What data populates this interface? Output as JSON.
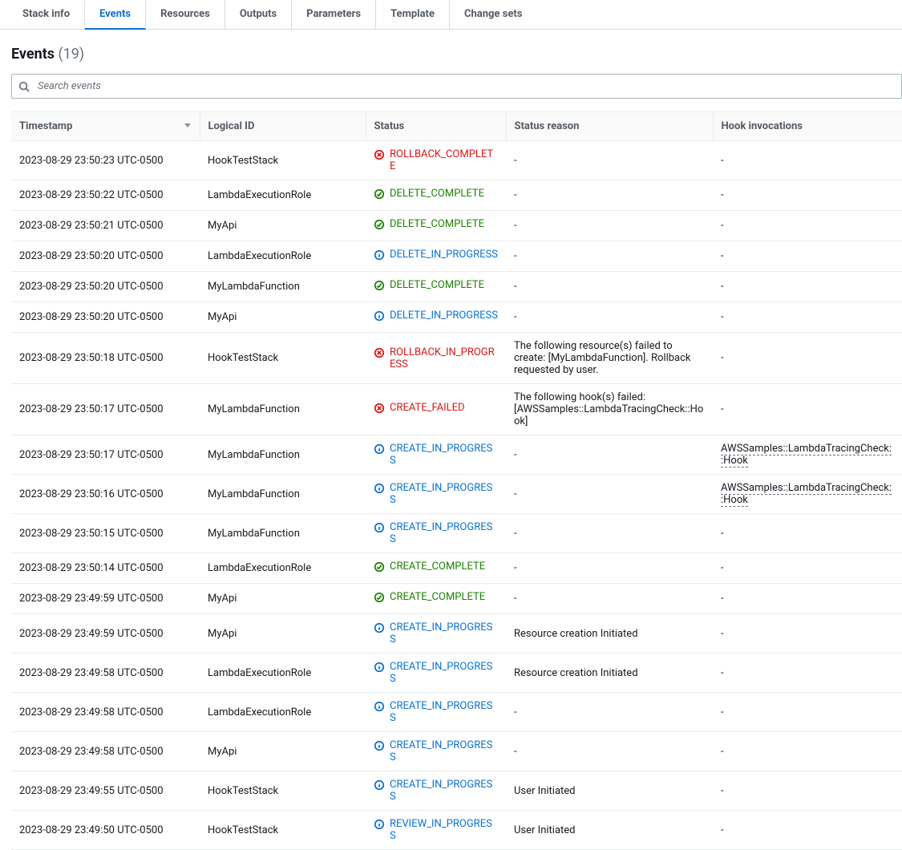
{
  "tabs": [
    {
      "label": "Stack info",
      "active": false
    },
    {
      "label": "Events",
      "active": true
    },
    {
      "label": "Resources",
      "active": false
    },
    {
      "label": "Outputs",
      "active": false
    },
    {
      "label": "Parameters",
      "active": false
    },
    {
      "label": "Template",
      "active": false
    },
    {
      "label": "Change sets",
      "active": false
    }
  ],
  "events_header": {
    "title": "Events",
    "count": "(19)"
  },
  "search": {
    "placeholder": "Search events"
  },
  "columns": {
    "timestamp": "Timestamp",
    "logical_id": "Logical ID",
    "status": "Status",
    "status_reason": "Status reason",
    "hook": "Hook invocations"
  },
  "status_styles": {
    "ROLLBACK_COMPLETE": {
      "color": "c-red",
      "icon": "error"
    },
    "ROLLBACK_IN_PROGRESS": {
      "color": "c-red",
      "icon": "error"
    },
    "CREATE_FAILED": {
      "color": "c-red",
      "icon": "error"
    },
    "DELETE_COMPLETE": {
      "color": "c-green",
      "icon": "success"
    },
    "CREATE_COMPLETE": {
      "color": "c-green",
      "icon": "success"
    },
    "DELETE_IN_PROGRESS": {
      "color": "c-blue",
      "icon": "info"
    },
    "CREATE_IN_PROGRESS": {
      "color": "c-blue",
      "icon": "info"
    },
    "REVIEW_IN_PROGRESS": {
      "color": "c-blue",
      "icon": "info"
    }
  },
  "colors": {
    "red": "#d91515",
    "green": "#1d8102",
    "blue": "#0972d3",
    "text": "#16191f",
    "muted": "#687078",
    "border": "#eaeded"
  },
  "rows": [
    {
      "ts": "2023-08-29 23:50:23 UTC-0500",
      "lid": "HookTestStack",
      "status": "ROLLBACK_COMPLETE",
      "reason": "-",
      "hook": "-"
    },
    {
      "ts": "2023-08-29 23:50:22 UTC-0500",
      "lid": "LambdaExecutionRole",
      "status": "DELETE_COMPLETE",
      "reason": "-",
      "hook": "-"
    },
    {
      "ts": "2023-08-29 23:50:21 UTC-0500",
      "lid": "MyApi",
      "status": "DELETE_COMPLETE",
      "reason": "-",
      "hook": "-"
    },
    {
      "ts": "2023-08-29 23:50:20 UTC-0500",
      "lid": "LambdaExecutionRole",
      "status": "DELETE_IN_PROGRESS",
      "reason": "-",
      "hook": "-"
    },
    {
      "ts": "2023-08-29 23:50:20 UTC-0500",
      "lid": "MyLambdaFunction",
      "status": "DELETE_COMPLETE",
      "reason": "-",
      "hook": "-"
    },
    {
      "ts": "2023-08-29 23:50:20 UTC-0500",
      "lid": "MyApi",
      "status": "DELETE_IN_PROGRESS",
      "reason": "-",
      "hook": "-"
    },
    {
      "ts": "2023-08-29 23:50:18 UTC-0500",
      "lid": "HookTestStack",
      "status": "ROLLBACK_IN_PROGRESS",
      "reason": "The following resource(s) failed to create: [MyLambdaFunction]. Rollback requested by user.",
      "hook": "-"
    },
    {
      "ts": "2023-08-29 23:50:17 UTC-0500",
      "lid": "MyLambdaFunction",
      "status": "CREATE_FAILED",
      "reason": "The following hook(s) failed: [AWSSamples::LambdaTracingCheck::Hook]",
      "hook": "-"
    },
    {
      "ts": "2023-08-29 23:50:17 UTC-0500",
      "lid": "MyLambdaFunction",
      "status": "CREATE_IN_PROGRESS",
      "reason": "-",
      "hook": "AWSSamples::LambdaTracingCheck::Hook",
      "hook_link": true
    },
    {
      "ts": "2023-08-29 23:50:16 UTC-0500",
      "lid": "MyLambdaFunction",
      "status": "CREATE_IN_PROGRESS",
      "reason": "-",
      "hook": "AWSSamples::LambdaTracingCheck::Hook",
      "hook_link": true
    },
    {
      "ts": "2023-08-29 23:50:15 UTC-0500",
      "lid": "MyLambdaFunction",
      "status": "CREATE_IN_PROGRESS",
      "reason": "-",
      "hook": "-"
    },
    {
      "ts": "2023-08-29 23:50:14 UTC-0500",
      "lid": "LambdaExecutionRole",
      "status": "CREATE_COMPLETE",
      "reason": "-",
      "hook": "-"
    },
    {
      "ts": "2023-08-29 23:49:59 UTC-0500",
      "lid": "MyApi",
      "status": "CREATE_COMPLETE",
      "reason": "-",
      "hook": "-"
    },
    {
      "ts": "2023-08-29 23:49:59 UTC-0500",
      "lid": "MyApi",
      "status": "CREATE_IN_PROGRESS",
      "reason": "Resource creation Initiated",
      "hook": "-"
    },
    {
      "ts": "2023-08-29 23:49:58 UTC-0500",
      "lid": "LambdaExecutionRole",
      "status": "CREATE_IN_PROGRESS",
      "reason": "Resource creation Initiated",
      "hook": "-"
    },
    {
      "ts": "2023-08-29 23:49:58 UTC-0500",
      "lid": "LambdaExecutionRole",
      "status": "CREATE_IN_PROGRESS",
      "reason": "-",
      "hook": "-"
    },
    {
      "ts": "2023-08-29 23:49:58 UTC-0500",
      "lid": "MyApi",
      "status": "CREATE_IN_PROGRESS",
      "reason": "-",
      "hook": "-"
    },
    {
      "ts": "2023-08-29 23:49:55 UTC-0500",
      "lid": "HookTestStack",
      "status": "CREATE_IN_PROGRESS",
      "reason": "User Initiated",
      "hook": "-"
    },
    {
      "ts": "2023-08-29 23:49:50 UTC-0500",
      "lid": "HookTestStack",
      "status": "REVIEW_IN_PROGRESS",
      "reason": "User Initiated",
      "hook": "-"
    }
  ]
}
